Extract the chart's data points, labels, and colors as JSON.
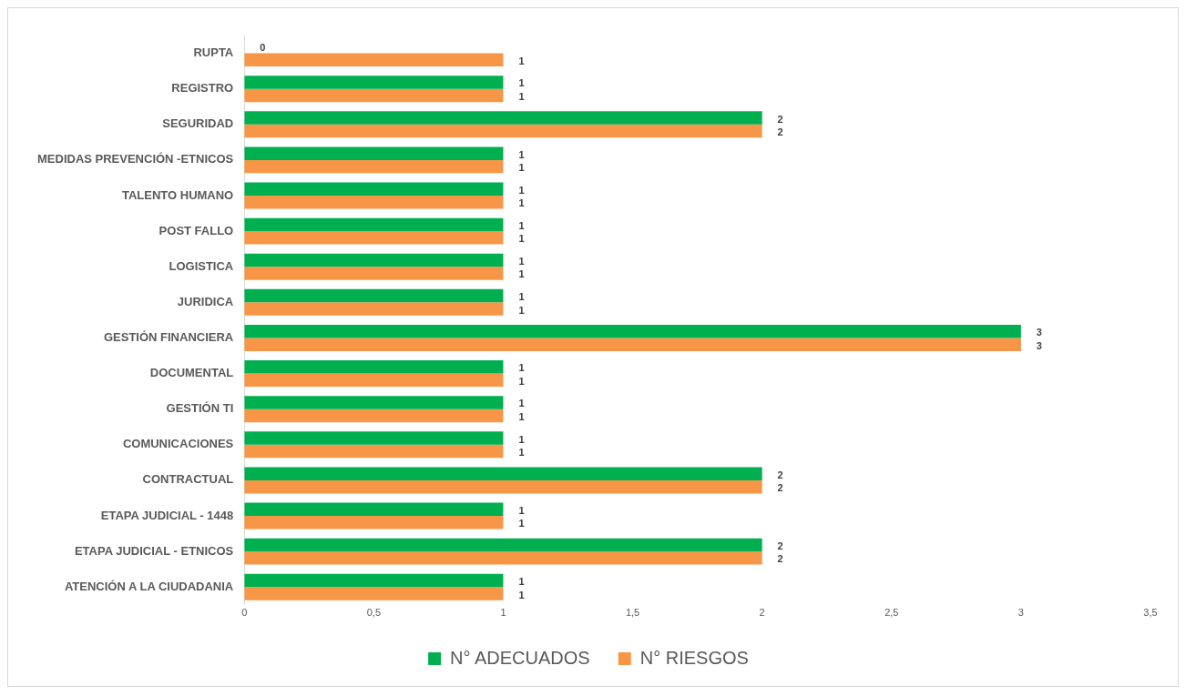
{
  "chart_data": {
    "type": "bar",
    "orientation": "horizontal",
    "categories": [
      "RUPTA",
      "REGISTRO",
      "SEGURIDAD",
      "MEDIDAS PREVENCIÓN -ETNICOS",
      "TALENTO HUMANO",
      "POST FALLO",
      "LOGISTICA",
      "JURIDICA",
      "GESTIÓN FINANCIERA",
      "DOCUMENTAL",
      "GESTIÓN TI",
      "COMUNICACIONES",
      "CONTRACTUAL",
      "ETAPA JUDICIAL - 1448",
      "ETAPA JUDICIAL - ETNICOS",
      "ATENCIÓN A LA CIUDADANIA"
    ],
    "series": [
      {
        "name": "N° ADECUADOS",
        "color": "#00b050",
        "values": [
          0,
          1,
          2,
          1,
          1,
          1,
          1,
          1,
          3,
          1,
          1,
          1,
          2,
          1,
          2,
          1
        ]
      },
      {
        "name": "N° RIESGOS",
        "color": "#f79646",
        "values": [
          1,
          1,
          2,
          1,
          1,
          1,
          1,
          1,
          3,
          1,
          1,
          1,
          2,
          1,
          2,
          1
        ]
      }
    ],
    "xlim": [
      0,
      3.5
    ],
    "xticks": [
      0,
      {
        "value": 0.5,
        "label": "0,5"
      },
      1,
      {
        "value": 1.5,
        "label": "1,5"
      },
      2,
      {
        "value": 2.5,
        "label": "2,5"
      },
      3,
      {
        "value": 3.5,
        "label": "3,5"
      }
    ],
    "data_labels": true,
    "legend": "bottom",
    "grid": false
  }
}
